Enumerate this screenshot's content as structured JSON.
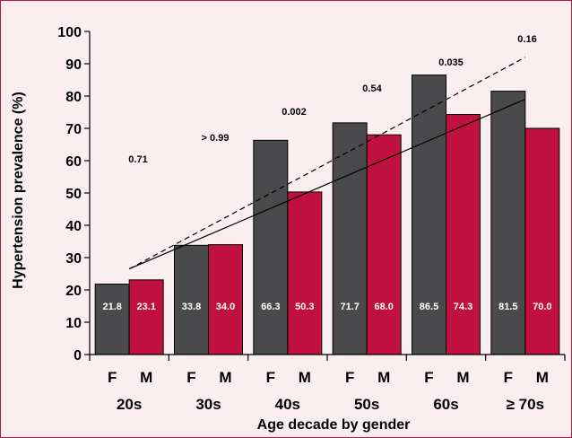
{
  "chart_data": {
    "type": "bar",
    "xlabel": "Age decade by gender",
    "ylabel": "Hypertension prevalence (%)",
    "ylim": [
      0,
      100
    ],
    "yticks": [
      0,
      10,
      20,
      30,
      40,
      50,
      60,
      70,
      80,
      90,
      100
    ],
    "groups": [
      "20s",
      "30s",
      "40s",
      "50s",
      "60s",
      "≥ 70s"
    ],
    "genders": [
      "F",
      "M"
    ],
    "series": [
      {
        "values": [
          21.8,
          33.8,
          66.3,
          71.7,
          86.5,
          81.5
        ],
        "labels": [
          "21.8",
          "33.8",
          "66.3",
          "71.7",
          "86.5",
          "81.5"
        ],
        "color": "#4a4a4c"
      },
      {
        "values": [
          23.1,
          34.0,
          50.3,
          68.0,
          74.3,
          70.0
        ],
        "labels": [
          "23.1",
          "34.0",
          "50.3",
          "68.0",
          "74.3",
          "70.0"
        ],
        "color": "#c0103f"
      }
    ],
    "p_values": [
      "0.71",
      "> 0.99",
      "0.002",
      "0.54",
      "0.035",
      "0.16"
    ],
    "trend_lines": [
      {
        "style": "dashed",
        "from": {
          "group": "20s",
          "y": 26.5
        },
        "to": {
          "group": "≥ 70s",
          "y": 92
        }
      },
      {
        "style": "solid",
        "from": {
          "group": "20s",
          "y": 26.5
        },
        "to": {
          "group": "≥ 70s",
          "y": 79
        }
      }
    ],
    "grid": false,
    "legend": "none"
  }
}
